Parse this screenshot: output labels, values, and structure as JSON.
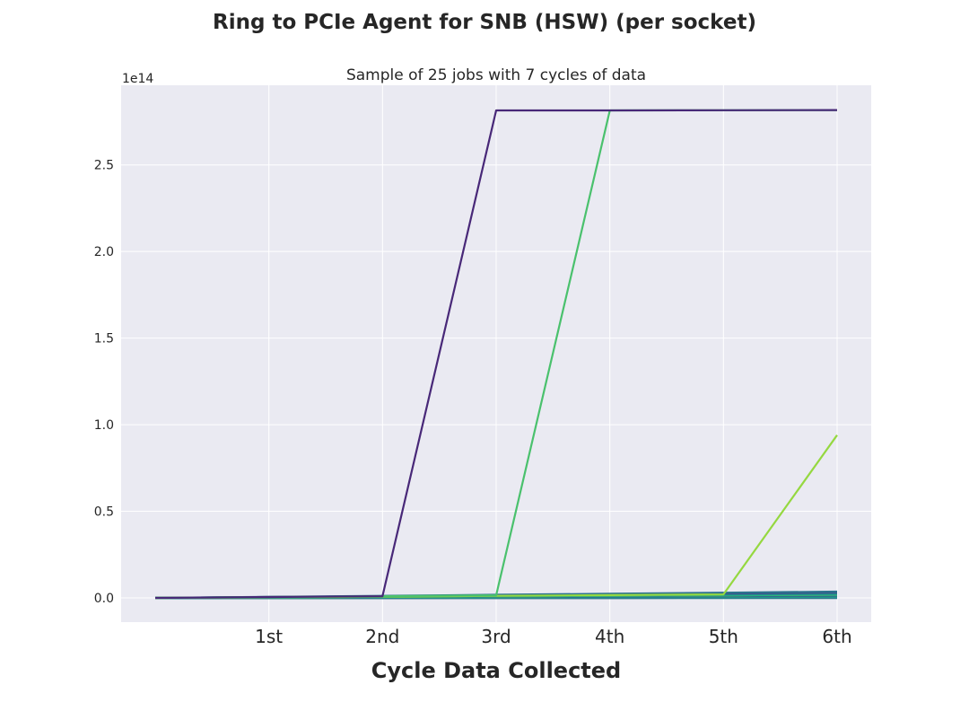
{
  "chart_data": {
    "type": "line",
    "title": "Ring to PCIe Agent for SNB (HSW) (per socket)",
    "subtitle": "Sample of 25 jobs with 7 cycles of data",
    "xlabel": "Cycle Data Collected",
    "ylabel": "",
    "y_offset_label": "1e14",
    "x": [
      0,
      1,
      2,
      3,
      4,
      5,
      6
    ],
    "xticks": [
      1,
      2,
      3,
      4,
      5,
      6
    ],
    "xtick_labels": [
      "1st",
      "2nd",
      "3rd",
      "4th",
      "5th",
      "6th"
    ],
    "yticks": [
      0,
      0.5,
      1.0,
      1.5,
      2.0,
      2.5
    ],
    "ytick_labels": [
      "0.0",
      "0.5",
      "1.0",
      "1.5",
      "2.0",
      "2.5"
    ],
    "xlim": [
      -0.3,
      6.3
    ],
    "ylim": [
      -0.14,
      2.96
    ],
    "grid": true,
    "series": [
      {
        "color": "#482878",
        "values": [
          0,
          0.005,
          0.01,
          2.815,
          2.815,
          2.816,
          2.817
        ]
      },
      {
        "color": "#4ac16d",
        "values": [
          0,
          0.005,
          0.01,
          0.015,
          2.815,
          2.816,
          2.817
        ]
      },
      {
        "color": "#95d840",
        "values": [
          0,
          0.004,
          0.008,
          0.012,
          0.016,
          0.02,
          0.94
        ]
      },
      {
        "color": "#2c728e",
        "values": [
          0,
          0.006,
          0.012,
          0.018,
          0.024,
          0.03,
          0.036
        ]
      },
      {
        "color": "#3b528b",
        "values": [
          0,
          0.005,
          0.01,
          0.015,
          0.02,
          0.025,
          0.03
        ]
      },
      {
        "color": "#21918c",
        "values": [
          0,
          0.004,
          0.008,
          0.012,
          0.016,
          0.02,
          0.024
        ]
      },
      {
        "color": "#28ae80",
        "values": [
          0,
          0.003,
          0.006,
          0.009,
          0.012,
          0.015,
          0.018
        ]
      },
      {
        "color": "#a0da39",
        "values": [
          0,
          0.003,
          0.006,
          0.009,
          0.012,
          0.015,
          0.018
        ]
      },
      {
        "color": "#31688e",
        "values": [
          0,
          0.002,
          0.004,
          0.006,
          0.008,
          0.01,
          0.012
        ]
      },
      {
        "color": "#1f9e89",
        "values": [
          0,
          0.001,
          0.002,
          0.003,
          0.004,
          0.005,
          0.006
        ]
      },
      {
        "color": "#26828e",
        "values": [
          0,
          0.001,
          0.001,
          0.002,
          0.002,
          0.003,
          0.003
        ]
      },
      {
        "color": "#355f8d",
        "values": [
          0,
          0.0005,
          0.001,
          0.0015,
          0.002,
          0.0025,
          0.003
        ]
      },
      {
        "color": "#1e9b8a",
        "values": [
          0,
          0.0005,
          0.001,
          0.0015,
          0.002,
          0.0025,
          0.003
        ]
      },
      {
        "color": "#3e4a89",
        "values": [
          0,
          0.0003,
          0.0006,
          0.0009,
          0.0012,
          0.0015,
          0.0018
        ]
      },
      {
        "color": "#287d8e",
        "values": [
          0,
          0.0003,
          0.0006,
          0.0009,
          0.0012,
          0.0015,
          0.0018
        ]
      },
      {
        "color": "#22a884",
        "values": [
          0,
          0.0002,
          0.0004,
          0.0006,
          0.0008,
          0.001,
          0.0012
        ]
      },
      {
        "color": "#2a788e",
        "values": [
          0,
          0.0002,
          0.0004,
          0.0006,
          0.0008,
          0.001,
          0.0012
        ]
      },
      {
        "color": "#414487",
        "values": [
          0,
          0.0001,
          0.0002,
          0.0003,
          0.0004,
          0.0005,
          0.0006
        ]
      },
      {
        "color": "#35b779",
        "values": [
          0,
          0.0001,
          0.0002,
          0.0003,
          0.0004,
          0.0005,
          0.0006
        ]
      },
      {
        "color": "#2f6c8e",
        "values": [
          0,
          0.0001,
          0.0002,
          0.0003,
          0.0004,
          0.0005,
          0.0006
        ]
      },
      {
        "color": "#25858e",
        "values": [
          0,
          0.0001,
          0.0001,
          0.0002,
          0.0002,
          0.0003,
          0.0003
        ]
      },
      {
        "color": "#440154",
        "values": [
          0,
          0.0001,
          0.0001,
          0.0002,
          0.0002,
          0.0003,
          0.0003
        ]
      },
      {
        "color": "#20a386",
        "values": [
          0,
          0.0001,
          0.0001,
          0.0001,
          0.0002,
          0.0002,
          0.0002
        ]
      },
      {
        "color": "#2d708e",
        "values": [
          0,
          0,
          0.0001,
          0.0001,
          0.0001,
          0.0001,
          0.0002
        ]
      },
      {
        "color": "#2b748e",
        "values": [
          0,
          0,
          0,
          0,
          0,
          0,
          0
        ]
      }
    ]
  }
}
